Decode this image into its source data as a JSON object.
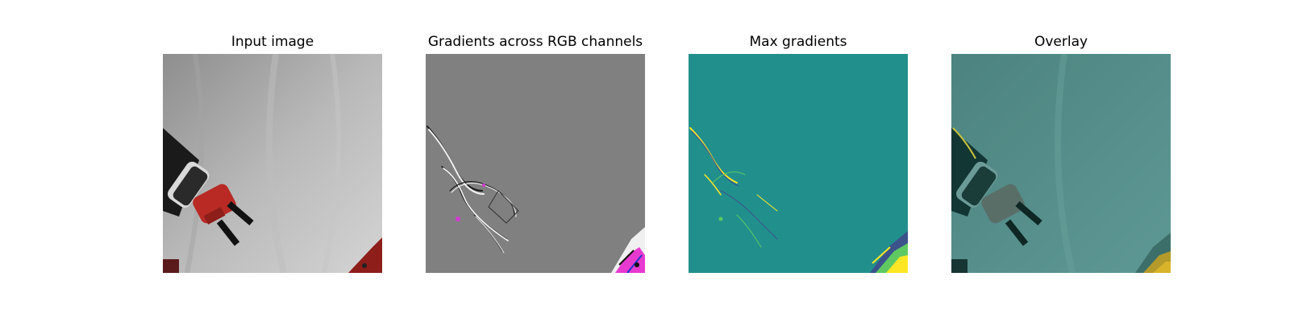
{
  "figure": {
    "panels": [
      {
        "title": "Input image"
      },
      {
        "title": "Gradients across RGB channels"
      },
      {
        "title": "Max gradients"
      },
      {
        "title": "Overlay"
      }
    ]
  },
  "colors": {
    "background": "#ffffff",
    "backdrop_gray": "#9a9a9a",
    "gradient_gray": "#808080",
    "viridis_teal": "#21908d",
    "viridis_yellow": "#fde725",
    "overlay_teal": "#4f8a86",
    "gripper_red": "#b92a24",
    "arm_black": "#1a1a1a"
  },
  "icons": [
    "robot-arm-photo",
    "gradient-map",
    "saliency-map",
    "overlay-map"
  ]
}
